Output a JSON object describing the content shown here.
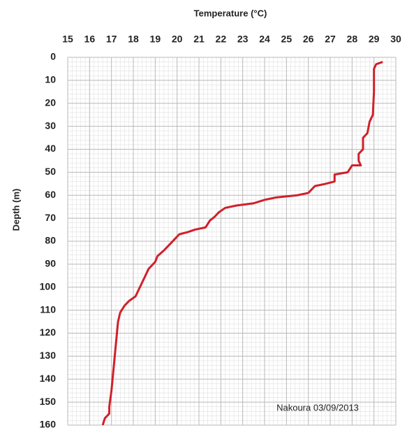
{
  "chart_data": {
    "type": "line",
    "title": "Temperature (°C)",
    "y_label": "Depth (m)",
    "annotation": "Nakoura 03/09/2013",
    "xlim": [
      15,
      30
    ],
    "xticks": [
      15,
      16,
      17,
      18,
      19,
      20,
      21,
      22,
      23,
      24,
      25,
      26,
      27,
      28,
      29,
      30
    ],
    "ylim": [
      0,
      160
    ],
    "yticks": [
      0,
      10,
      20,
      30,
      40,
      50,
      60,
      70,
      80,
      90,
      100,
      110,
      120,
      130,
      140,
      150,
      160
    ],
    "y_inverted": true,
    "x_axis_top": true,
    "grid": true,
    "series": [
      {
        "color": "#d0202a",
        "x": [
          29.4,
          29.1,
          29.0,
          29.0,
          28.95,
          28.8,
          28.7,
          28.5,
          28.5,
          28.3,
          28.3,
          28.4,
          28.0,
          27.8,
          27.2,
          27.2,
          26.8,
          26.3,
          26.0,
          25.5,
          24.5,
          24.0,
          23.5,
          22.7,
          22.2,
          21.9,
          21.7,
          21.5,
          21.3,
          20.8,
          20.5,
          20.1,
          19.9,
          19.7,
          19.4,
          19.1,
          19.0,
          18.7,
          18.5,
          18.3,
          18.1,
          17.8,
          17.6,
          17.4,
          17.3,
          17.2,
          17.1,
          17.0,
          16.9,
          16.9,
          16.7,
          16.6
        ],
        "values": [
          2,
          3,
          5,
          15,
          25,
          28,
          33,
          35,
          40,
          42,
          45,
          47,
          47,
          50,
          51,
          54,
          55,
          56,
          59,
          60,
          61,
          62,
          63.5,
          64.5,
          65.5,
          67.5,
          69.5,
          71,
          74,
          75,
          76,
          77,
          79,
          81,
          84,
          86.5,
          89,
          92,
          96,
          100,
          104,
          106,
          108,
          111,
          115,
          125,
          135,
          145,
          152,
          155,
          157,
          160
        ]
      }
    ]
  }
}
